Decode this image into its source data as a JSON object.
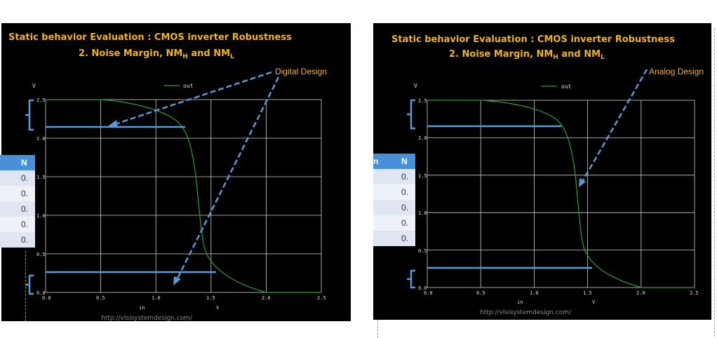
{
  "slides": [
    {
      "title_line1": "Static behavior Evaluation : CMOS inverter Robustness",
      "title_line2_prefix": "2. Noise Margin, NM",
      "sub_h": "H",
      "title_line2_mid": " and NM",
      "sub_l": "L",
      "annotation": "Digital Design",
      "url": "http://vlsisystemdesign.com/"
    },
    {
      "title_line1": "Static behavior Evaluation : CMOS inverter Robustness",
      "title_line2_prefix": "2. Noise Margin, NM",
      "sub_h": "H",
      "title_line2_mid": " and NM",
      "sub_l": "L",
      "annotation": "Analog Design",
      "url": "http://vlsisystemdesign.com/"
    }
  ],
  "plot": {
    "y_unit": "V",
    "x_name": "in",
    "x_unit": "V",
    "legend": "out",
    "ticks": [
      "0.0",
      "0.5",
      "1.0",
      "1.5",
      "2.0",
      "2.5"
    ]
  },
  "side_table": {
    "left": {
      "header": "N",
      "cells": [
        "0.",
        "0.",
        "0.",
        "0.",
        "0."
      ]
    },
    "right": {
      "header_a": "n",
      "header_b": "N",
      "cells": [
        "0.",
        "0.",
        "0.",
        "0.",
        "0."
      ]
    }
  },
  "colors": {
    "slide_bg": "#000000",
    "title": "#f0b323",
    "annotation_text": "#f0b323",
    "arrow": "#5b9bd5",
    "curve": "#2e9e2e",
    "grid": "#cfcfcf",
    "table_header": "#4a90d9",
    "row_a": "#dfe6f2",
    "row_b": "#eef2f8"
  }
}
